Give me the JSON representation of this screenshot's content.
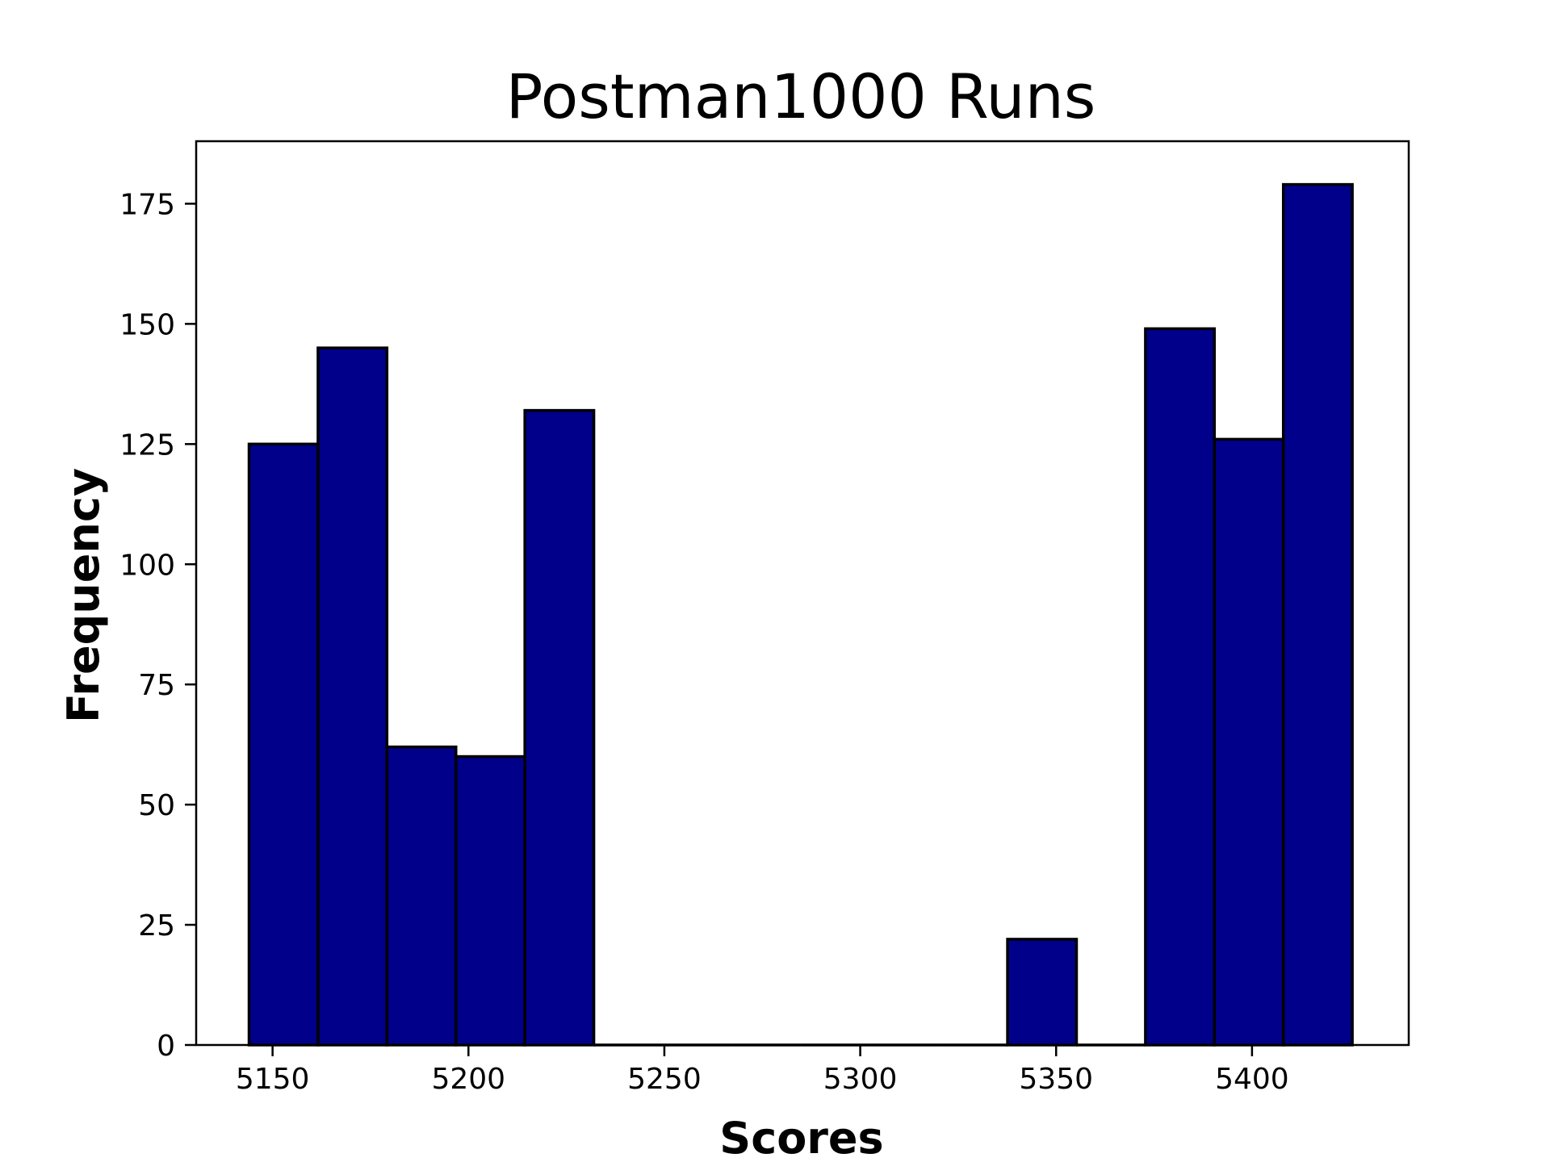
{
  "chart_data": {
    "type": "bar",
    "title": "Postman1000 Runs",
    "xlabel": "Scores",
    "ylabel": "Frequency",
    "bar_color": "#00008b",
    "edge_color": "#000000",
    "xlim": [
      5130.5,
      5440
    ],
    "ylim": [
      0,
      188
    ],
    "xticks": [
      5150,
      5200,
      5250,
      5300,
      5350,
      5400
    ],
    "yticks": [
      0,
      25,
      50,
      75,
      100,
      125,
      150,
      175
    ],
    "grid": false,
    "legend": "none",
    "bins": [
      {
        "start": 5144.0,
        "end": 5161.6,
        "count": 125
      },
      {
        "start": 5161.6,
        "end": 5179.2,
        "count": 145
      },
      {
        "start": 5179.2,
        "end": 5196.8,
        "count": 62
      },
      {
        "start": 5196.8,
        "end": 5214.4,
        "count": 60
      },
      {
        "start": 5214.4,
        "end": 5232.0,
        "count": 132
      },
      {
        "start": 5232.0,
        "end": 5249.6,
        "count": 0
      },
      {
        "start": 5249.6,
        "end": 5267.2,
        "count": 0
      },
      {
        "start": 5267.2,
        "end": 5284.8,
        "count": 0
      },
      {
        "start": 5284.8,
        "end": 5302.4,
        "count": 0
      },
      {
        "start": 5302.4,
        "end": 5320.0,
        "count": 0
      },
      {
        "start": 5320.0,
        "end": 5337.6,
        "count": 0
      },
      {
        "start": 5337.6,
        "end": 5355.2,
        "count": 22
      },
      {
        "start": 5355.2,
        "end": 5372.8,
        "count": 0
      },
      {
        "start": 5372.8,
        "end": 5390.4,
        "count": 149
      },
      {
        "start": 5390.4,
        "end": 5408.0,
        "count": 126
      },
      {
        "start": 5408.0,
        "end": 5425.6,
        "count": 179
      }
    ]
  }
}
